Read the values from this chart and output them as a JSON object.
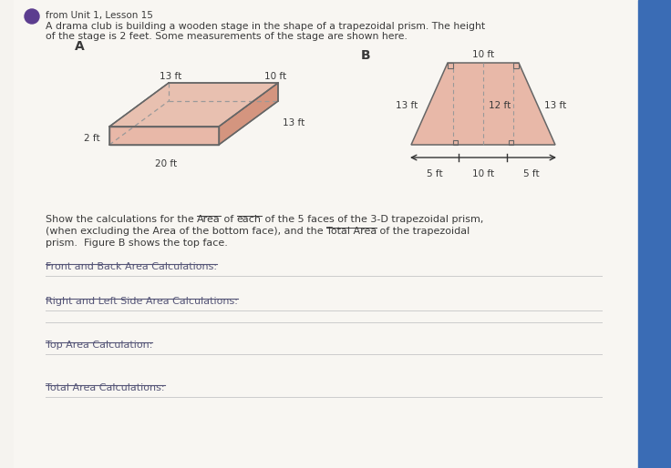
{
  "bg_color": "#f5f3ef",
  "page_bg": "#f8f6f2",
  "title_bullet_color": "#5c3d8f",
  "header_line1": "from Unit 1, Lesson 15",
  "header_line2": "A drama club is building a wooden stage in the shape of a trapezoidal prism. The height",
  "header_line3": "of the stage is 2 feet. Some measurements of the stage are shown here.",
  "label_A": "A",
  "label_B": "B",
  "fig_A_labels": {
    "top": "13 ft",
    "depth": "10 ft",
    "height": "2 ft",
    "bottom": "20 ft",
    "right": "13 ft"
  },
  "fig_B_labels": {
    "top": "10 ft",
    "left_side": "13 ft",
    "right_side": "13 ft",
    "center_height": "12 ft",
    "bottom_left": "5 ft",
    "bottom_mid": "10 ft",
    "bottom_right": "5 ft"
  },
  "body_line1_plain1": "Show the calculations for the ",
  "body_line1_ul1": "Area",
  "body_line1_plain2": " of ",
  "body_line1_ul2": "each",
  "body_line1_plain3": " of the 5 faces of the 3-D trapezoidal prism,",
  "body_line2_plain1": "(when excluding the Area of the bottom face), and the ",
  "body_line2_ul1": "Total Area",
  "body_line2_plain2": " of the trapezoidal",
  "body_line3": "prism.  Figure B shows the top face.",
  "section1_label": "Front and Back Area Calculations:",
  "section2_label": "Right and Left Side Area Calculations:",
  "section3_label": "Top Area Calculation:",
  "section4_label": "Total Area Calculations:",
  "text_color": "#3a3a3a",
  "section_label_color": "#555577",
  "prism_face_color": "#e8b8a8",
  "prism_right_color": "#d4957f",
  "prism_top_color": "#e8c0b0",
  "prism_edge_color": "#666666",
  "trap_face_color": "#e8b8a8",
  "line_color": "#cccccc",
  "dashed_color": "#999999"
}
